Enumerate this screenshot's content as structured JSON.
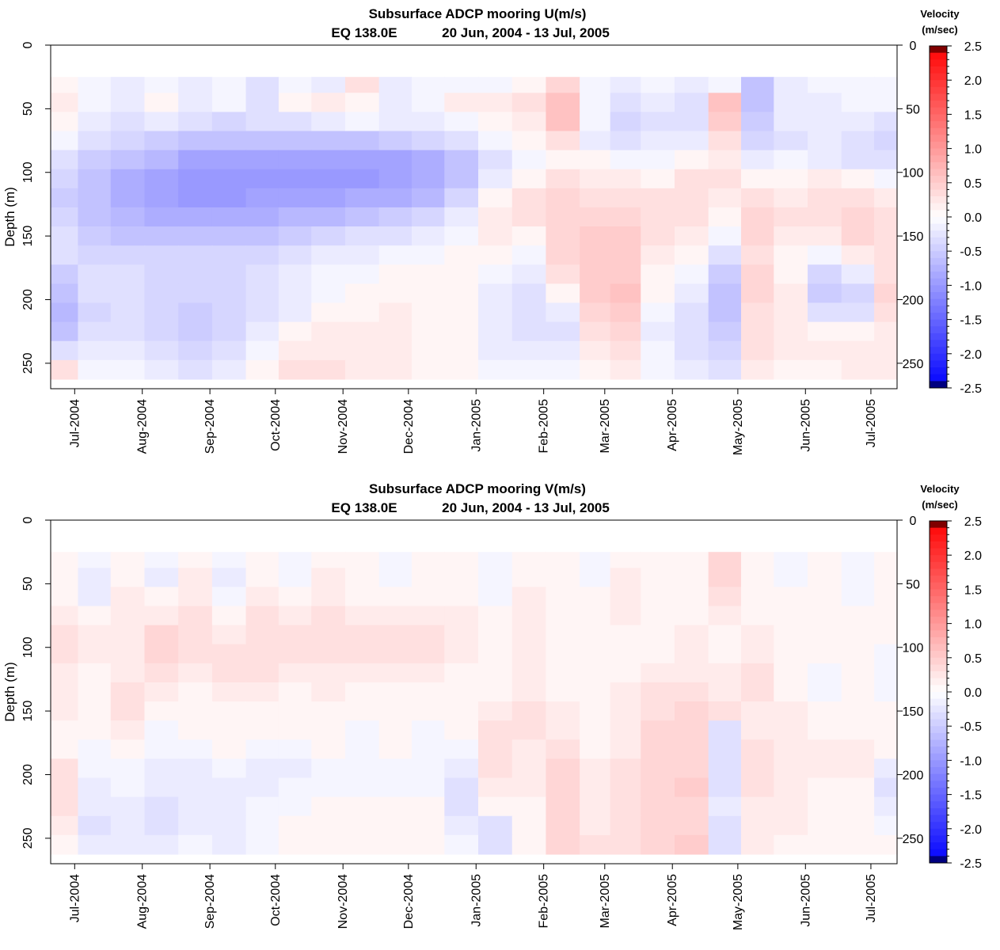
{
  "chart_data": [
    {
      "type": "heatmap",
      "title": "Subsurface ADCP mooring U(m/s)",
      "subtitle_location": "EQ 138.0E",
      "subtitle_dates": "20 Jun, 2004 - 13 Jul, 2005",
      "ylabel": "Depth (m)",
      "y_ticks": [
        "0",
        "50",
        "100",
        "150",
        "200",
        "250"
      ],
      "x_ticks": [
        "Jul-2004",
        "Aug-2004",
        "Sep-2004",
        "Oct-2004",
        "Nov-2004",
        "Dec-2004",
        "Jan-2005",
        "Feb-2005",
        "Mar-2005",
        "Apr-2005",
        "May-2005",
        "Jun-2005",
        "Jul-2005"
      ],
      "x_range": [
        "2004-06-20",
        "2005-07-13"
      ],
      "ylim": [
        0,
        270
      ],
      "y_inverted": true,
      "data_depth_range": [
        25,
        265
      ],
      "colorbar": {
        "title_line1": "Velocity",
        "title_line2": "(m/sec)",
        "range": [
          -2.5,
          2.5
        ],
        "ticks": [
          "2.5",
          "2.0",
          "1.5",
          "1.0",
          "0.5",
          "0.0",
          "-0.5",
          "-1.0",
          "-1.5",
          "-2.0",
          "-2.5"
        ],
        "colors": {
          "negative": "#0000ff",
          "zero": "#ffffff",
          "positive": "#ff0000",
          "max": "#800000",
          "min": "#000080"
        }
      },
      "depths": [
        30,
        45,
        60,
        75,
        90,
        105,
        120,
        135,
        150,
        165,
        180,
        195,
        210,
        225,
        240,
        255
      ],
      "times": [
        "2004-06-25",
        "2004-07-10",
        "2004-07-25",
        "2004-08-10",
        "2004-08-25",
        "2004-09-10",
        "2004-09-25",
        "2004-10-10",
        "2004-10-25",
        "2004-11-10",
        "2004-11-25",
        "2004-12-10",
        "2004-12-25",
        "2005-01-10",
        "2005-01-25",
        "2005-02-10",
        "2005-02-25",
        "2005-03-10",
        "2005-03-25",
        "2005-04-10",
        "2005-04-25",
        "2005-05-10",
        "2005-05-25",
        "2005-06-10",
        "2005-06-25",
        "2005-07-10"
      ],
      "values": [
        [
          0.1,
          -0.1,
          -0.2,
          -0.1,
          -0.2,
          -0.1,
          -0.3,
          -0.1,
          -0.2,
          0.3,
          -0.2,
          -0.1,
          -0.1,
          -0.1,
          0.1,
          0.4,
          -0.1,
          -0.2,
          -0.1,
          -0.2,
          -0.1,
          -0.6,
          -0.2,
          -0.1,
          -0.1,
          -0.1
        ],
        [
          0.2,
          -0.1,
          -0.2,
          0.1,
          -0.2,
          -0.1,
          -0.3,
          0.1,
          0.2,
          0.1,
          -0.2,
          -0.1,
          0.2,
          0.2,
          0.3,
          0.6,
          -0.1,
          -0.3,
          -0.2,
          -0.3,
          0.6,
          -0.6,
          -0.2,
          -0.2,
          -0.1,
          -0.1
        ],
        [
          0.1,
          -0.2,
          -0.3,
          -0.2,
          -0.3,
          -0.4,
          -0.3,
          -0.3,
          -0.2,
          -0.1,
          -0.2,
          -0.2,
          -0.1,
          0.1,
          0.2,
          0.6,
          -0.1,
          -0.4,
          -0.3,
          -0.3,
          0.5,
          -0.5,
          -0.2,
          -0.2,
          -0.2,
          -0.3
        ],
        [
          -0.1,
          -0.3,
          -0.4,
          -0.5,
          -0.6,
          -0.6,
          -0.6,
          -0.6,
          -0.6,
          -0.6,
          -0.5,
          -0.4,
          -0.3,
          -0.1,
          0.1,
          0.3,
          -0.2,
          -0.3,
          -0.2,
          -0.2,
          0.3,
          -0.4,
          -0.3,
          -0.2,
          -0.3,
          -0.4
        ],
        [
          -0.3,
          -0.5,
          -0.6,
          -0.7,
          -0.9,
          -0.9,
          -0.9,
          -0.9,
          -0.9,
          -0.9,
          -0.9,
          -0.8,
          -0.6,
          -0.3,
          -0.1,
          0.1,
          0.1,
          -0.1,
          -0.1,
          0.1,
          0.2,
          -0.2,
          -0.1,
          -0.2,
          -0.3,
          -0.3
        ],
        [
          -0.4,
          -0.6,
          -0.8,
          -0.9,
          -1.0,
          -1.0,
          -1.0,
          -1.0,
          -1.0,
          -1.0,
          -0.9,
          -0.8,
          -0.6,
          -0.2,
          0.1,
          0.3,
          0.2,
          0.2,
          0.1,
          0.3,
          0.3,
          0.1,
          0.1,
          0.2,
          0.1,
          -0.1
        ],
        [
          -0.5,
          -0.6,
          -0.8,
          -0.9,
          -1.0,
          -1.0,
          -0.9,
          -0.9,
          -0.9,
          -0.8,
          -0.8,
          -0.7,
          -0.4,
          0.1,
          0.3,
          0.4,
          0.3,
          0.3,
          0.3,
          0.3,
          0.2,
          0.3,
          0.2,
          0.3,
          0.3,
          0.2
        ],
        [
          -0.4,
          -0.6,
          -0.7,
          -0.8,
          -0.8,
          -0.8,
          -0.8,
          -0.7,
          -0.7,
          -0.6,
          -0.5,
          -0.4,
          -0.2,
          0.2,
          0.3,
          0.4,
          0.4,
          0.4,
          0.3,
          0.3,
          0.1,
          0.4,
          0.3,
          0.3,
          0.4,
          0.3
        ],
        [
          -0.3,
          -0.5,
          -0.6,
          -0.6,
          -0.6,
          -0.6,
          -0.6,
          -0.5,
          -0.4,
          -0.3,
          -0.3,
          -0.2,
          -0.1,
          0.2,
          0.1,
          0.4,
          0.5,
          0.5,
          0.3,
          0.2,
          -0.1,
          0.4,
          0.2,
          0.2,
          0.4,
          0.3
        ],
        [
          -0.3,
          -0.4,
          -0.4,
          -0.4,
          -0.4,
          -0.4,
          -0.4,
          -0.3,
          -0.2,
          -0.2,
          -0.1,
          -0.1,
          0.1,
          0.1,
          -0.1,
          0.4,
          0.5,
          0.5,
          0.2,
          0.1,
          -0.3,
          0.3,
          0.1,
          -0.1,
          0.2,
          0.3
        ],
        [
          -0.5,
          -0.3,
          -0.3,
          -0.4,
          -0.4,
          -0.4,
          -0.3,
          -0.2,
          -0.1,
          -0.1,
          0.1,
          0.1,
          0.1,
          -0.1,
          -0.2,
          0.3,
          0.5,
          0.5,
          0.1,
          -0.1,
          -0.5,
          0.4,
          0.1,
          -0.4,
          -0.2,
          0.3
        ],
        [
          -0.6,
          -0.3,
          -0.3,
          -0.4,
          -0.4,
          -0.4,
          -0.3,
          -0.2,
          -0.1,
          0.1,
          0.1,
          0.1,
          0.1,
          -0.2,
          -0.3,
          0.1,
          0.5,
          0.6,
          0.1,
          -0.2,
          -0.6,
          0.4,
          0.2,
          -0.5,
          -0.4,
          0.4
        ],
        [
          -0.7,
          -0.4,
          -0.3,
          -0.4,
          -0.5,
          -0.4,
          -0.3,
          -0.2,
          0.1,
          0.1,
          0.2,
          0.1,
          0.1,
          -0.2,
          -0.3,
          -0.2,
          0.4,
          0.5,
          -0.1,
          -0.3,
          -0.6,
          0.3,
          0.2,
          -0.3,
          -0.3,
          0.3
        ],
        [
          -0.6,
          -0.3,
          -0.3,
          -0.4,
          -0.5,
          -0.4,
          -0.2,
          0.1,
          0.2,
          0.2,
          0.2,
          0.1,
          0.1,
          -0.2,
          -0.3,
          -0.3,
          0.3,
          0.4,
          -0.2,
          -0.3,
          -0.5,
          0.3,
          0.2,
          0.1,
          0.1,
          0.2
        ],
        [
          -0.3,
          -0.2,
          -0.2,
          -0.3,
          -0.4,
          -0.3,
          -0.1,
          0.2,
          0.2,
          0.2,
          0.2,
          0.1,
          0.1,
          -0.2,
          -0.2,
          -0.2,
          0.2,
          0.3,
          -0.1,
          -0.3,
          -0.4,
          0.3,
          0.2,
          0.2,
          0.2,
          0.2
        ],
        [
          0.3,
          -0.1,
          -0.1,
          -0.2,
          -0.3,
          -0.2,
          0.1,
          0.3,
          0.3,
          0.2,
          0.2,
          0.1,
          0.1,
          -0.1,
          -0.1,
          -0.1,
          0.1,
          0.2,
          -0.1,
          -0.2,
          -0.3,
          0.2,
          0.1,
          0.1,
          0.2,
          0.2
        ]
      ]
    },
    {
      "type": "heatmap",
      "title": "Subsurface ADCP mooring V(m/s)",
      "subtitle_location": "EQ 138.0E",
      "subtitle_dates": "20 Jun, 2004 - 13 Jul, 2005",
      "ylabel": "Depth (m)",
      "y_ticks": [
        "0",
        "50",
        "100",
        "150",
        "200",
        "250"
      ],
      "x_ticks": [
        "Jul-2004",
        "Aug-2004",
        "Sep-2004",
        "Oct-2004",
        "Nov-2004",
        "Dec-2004",
        "Jan-2005",
        "Feb-2005",
        "Mar-2005",
        "Apr-2005",
        "May-2005",
        "Jun-2005",
        "Jul-2005"
      ],
      "x_range": [
        "2004-06-20",
        "2005-07-13"
      ],
      "ylim": [
        0,
        270
      ],
      "y_inverted": true,
      "data_depth_range": [
        25,
        265
      ],
      "colorbar": {
        "title_line1": "Velocity",
        "title_line2": "(m/sec)",
        "range": [
          -2.5,
          2.5
        ],
        "ticks": [
          "2.5",
          "2.0",
          "1.5",
          "1.0",
          "0.5",
          "0.0",
          "-0.5",
          "-1.0",
          "-1.5",
          "-2.0",
          "-2.5"
        ],
        "colors": {
          "negative": "#0000ff",
          "zero": "#ffffff",
          "positive": "#ff0000",
          "max": "#800000",
          "min": "#000080"
        }
      },
      "depths": [
        30,
        45,
        60,
        75,
        90,
        105,
        120,
        135,
        150,
        165,
        180,
        195,
        210,
        225,
        240,
        255
      ],
      "times": [
        "2004-06-25",
        "2004-07-10",
        "2004-07-25",
        "2004-08-10",
        "2004-08-25",
        "2004-09-10",
        "2004-09-25",
        "2004-10-10",
        "2004-10-25",
        "2004-11-10",
        "2004-11-25",
        "2004-12-10",
        "2004-12-25",
        "2005-01-10",
        "2005-01-25",
        "2005-02-10",
        "2005-02-25",
        "2005-03-10",
        "2005-03-25",
        "2005-04-10",
        "2005-04-25",
        "2005-05-10",
        "2005-05-25",
        "2005-06-10",
        "2005-06-25",
        "2005-07-10"
      ],
      "values": [
        [
          0.1,
          -0.1,
          0.1,
          -0.1,
          0.1,
          -0.1,
          0.1,
          -0.1,
          0.1,
          0.1,
          -0.1,
          0.1,
          0.1,
          -0.1,
          0.1,
          0.1,
          -0.1,
          0.1,
          0.1,
          0.1,
          0.4,
          0.1,
          -0.1,
          0.1,
          -0.1,
          0.1
        ],
        [
          0.1,
          -0.2,
          0.1,
          -0.2,
          0.2,
          -0.2,
          0.1,
          -0.1,
          0.2,
          0.1,
          -0.1,
          0.1,
          0.1,
          -0.1,
          0.1,
          0.1,
          -0.1,
          0.2,
          0.1,
          0.1,
          0.4,
          0.1,
          -0.1,
          0.1,
          -0.1,
          0.1
        ],
        [
          0.1,
          -0.2,
          0.2,
          0.1,
          0.2,
          -0.1,
          0.2,
          0.1,
          0.2,
          0.1,
          0.1,
          0.1,
          0.1,
          -0.1,
          0.2,
          0.1,
          0.1,
          0.2,
          0.1,
          0.1,
          0.3,
          0.1,
          0.1,
          0.1,
          -0.1,
          0.1
        ],
        [
          0.2,
          0.1,
          0.2,
          0.2,
          0.3,
          0.1,
          0.3,
          0.2,
          0.3,
          0.2,
          0.2,
          0.2,
          0.2,
          0.1,
          0.2,
          0.1,
          0.1,
          0.2,
          0.1,
          0.1,
          0.2,
          0.1,
          0.1,
          0.1,
          0.1,
          0.1
        ],
        [
          0.3,
          0.2,
          0.2,
          0.4,
          0.3,
          0.2,
          0.3,
          0.3,
          0.3,
          0.3,
          0.3,
          0.3,
          0.2,
          0.1,
          0.2,
          0.1,
          0.1,
          0.1,
          0.1,
          0.2,
          0.1,
          0.2,
          0.1,
          0.1,
          0.1,
          0.1
        ],
        [
          0.3,
          0.2,
          0.2,
          0.4,
          0.3,
          0.3,
          0.3,
          0.3,
          0.3,
          0.3,
          0.3,
          0.3,
          0.2,
          0.1,
          0.2,
          0.1,
          0.1,
          0.1,
          0.1,
          0.2,
          0.1,
          0.2,
          0.1,
          0.1,
          0.1,
          -0.1
        ],
        [
          0.2,
          0.1,
          0.2,
          0.3,
          0.2,
          0.3,
          0.3,
          0.2,
          0.2,
          0.2,
          0.2,
          0.2,
          0.1,
          0.1,
          0.2,
          0.1,
          0.1,
          0.1,
          0.2,
          0.2,
          0.2,
          0.3,
          0.1,
          -0.1,
          0.1,
          -0.1
        ],
        [
          0.2,
          0.1,
          0.3,
          0.2,
          0.1,
          0.2,
          0.2,
          0.1,
          0.2,
          0.1,
          0.1,
          0.1,
          0.1,
          0.1,
          0.2,
          0.1,
          0.1,
          0.2,
          0.3,
          0.3,
          0.2,
          0.3,
          0.1,
          -0.1,
          0.1,
          -0.1
        ],
        [
          0.2,
          0.1,
          0.3,
          0.1,
          0.1,
          0.1,
          0.1,
          0.1,
          0.1,
          0.1,
          0.1,
          0.1,
          0.1,
          0.2,
          0.3,
          0.2,
          0.1,
          0.2,
          0.3,
          0.4,
          0.3,
          0.2,
          0.2,
          0.1,
          0.1,
          0.1
        ],
        [
          0.1,
          0.1,
          0.2,
          -0.1,
          0.1,
          0.1,
          0.1,
          0.1,
          0.1,
          -0.1,
          0.1,
          -0.1,
          0.1,
          0.3,
          0.3,
          0.2,
          0.1,
          0.2,
          0.4,
          0.4,
          -0.3,
          0.2,
          0.2,
          0.1,
          0.1,
          0.1
        ],
        [
          0.1,
          -0.1,
          0.1,
          -0.1,
          -0.1,
          0.1,
          -0.1,
          -0.1,
          0.1,
          -0.1,
          0.1,
          -0.1,
          -0.1,
          0.3,
          0.2,
          0.3,
          0.1,
          0.2,
          0.4,
          0.4,
          -0.3,
          0.3,
          0.2,
          0.2,
          0.2,
          0.1
        ],
        [
          0.3,
          -0.1,
          -0.1,
          -0.2,
          -0.2,
          -0.1,
          -0.2,
          -0.2,
          -0.1,
          -0.1,
          -0.1,
          -0.1,
          -0.2,
          0.3,
          0.2,
          0.4,
          0.2,
          0.3,
          0.4,
          0.4,
          -0.3,
          0.3,
          0.2,
          0.2,
          0.2,
          -0.2
        ],
        [
          0.3,
          -0.2,
          -0.1,
          -0.2,
          -0.2,
          -0.2,
          -0.2,
          -0.1,
          -0.1,
          -0.1,
          -0.1,
          -0.1,
          -0.3,
          0.2,
          0.2,
          0.4,
          0.2,
          0.3,
          0.4,
          0.5,
          -0.3,
          0.3,
          0.2,
          0.1,
          0.1,
          -0.3
        ],
        [
          0.3,
          -0.2,
          -0.2,
          -0.3,
          -0.2,
          -0.2,
          -0.1,
          -0.1,
          0.1,
          0.1,
          0.1,
          0.1,
          -0.3,
          0.1,
          0.1,
          0.4,
          0.2,
          0.3,
          0.4,
          0.4,
          -0.2,
          0.2,
          0.2,
          0.1,
          0.1,
          -0.2
        ],
        [
          0.2,
          -0.3,
          -0.2,
          -0.3,
          -0.2,
          -0.2,
          -0.1,
          0.1,
          0.1,
          0.1,
          0.1,
          0.1,
          -0.2,
          -0.3,
          0.1,
          0.4,
          0.2,
          0.3,
          0.4,
          0.4,
          -0.3,
          0.2,
          0.2,
          0.1,
          0.1,
          -0.1
        ],
        [
          0.1,
          -0.2,
          -0.2,
          -0.2,
          -0.1,
          -0.2,
          -0.1,
          0.1,
          0.1,
          0.1,
          0.1,
          0.1,
          -0.1,
          -0.3,
          0.1,
          0.4,
          0.3,
          0.3,
          0.4,
          0.5,
          -0.3,
          0.2,
          0.1,
          0.1,
          0.1,
          0.1
        ]
      ]
    }
  ]
}
